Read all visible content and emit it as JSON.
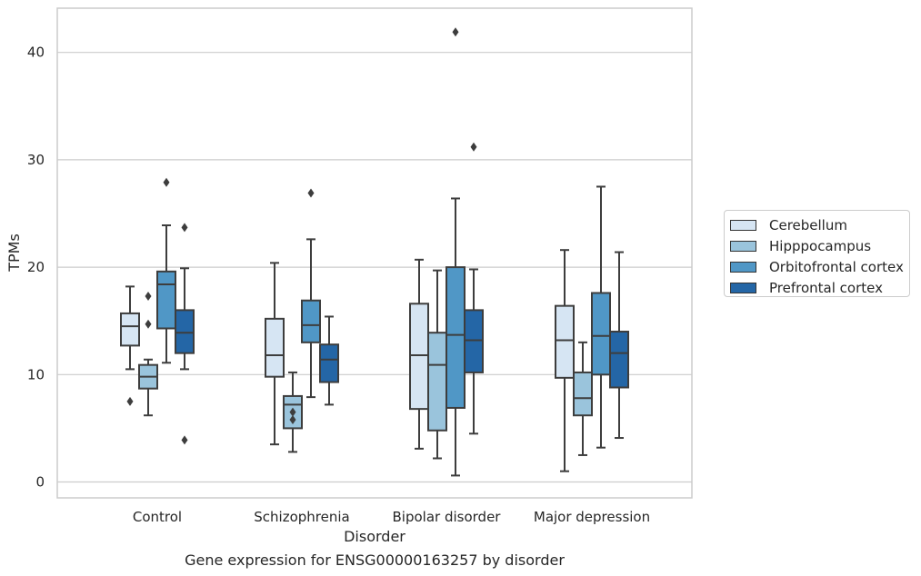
{
  "chart_data": {
    "type": "box",
    "title": "Gene expression for ENSG00000163257 by disorder",
    "xlabel": "Disorder",
    "ylabel": "TPMs",
    "ylim": [
      -1.5,
      44
    ],
    "yticks": [
      0,
      10,
      20,
      30,
      40
    ],
    "grid": "horizontal",
    "legend_position": "right",
    "categories": [
      "Control",
      "Schizophrenia",
      "Bipolar disorder",
      "Major depression"
    ],
    "series": [
      {
        "name": "Cerebellum",
        "color": "#d6e5f3",
        "boxes": [
          {
            "whislo": 10.5,
            "q1": 12.7,
            "med": 14.5,
            "q3": 15.7,
            "whishi": 18.2,
            "fliers": [
              7.5
            ]
          },
          {
            "whislo": 3.5,
            "q1": 9.8,
            "med": 11.8,
            "q3": 15.2,
            "whishi": 20.4,
            "fliers": []
          },
          {
            "whislo": 3.1,
            "q1": 6.8,
            "med": 11.8,
            "q3": 16.6,
            "whishi": 20.7,
            "fliers": []
          },
          {
            "whislo": 1.0,
            "q1": 9.7,
            "med": 13.2,
            "q3": 16.4,
            "whishi": 21.6,
            "fliers": []
          }
        ]
      },
      {
        "name": "Hipppocampus",
        "color": "#9ac4dc",
        "boxes": [
          {
            "whislo": 6.2,
            "q1": 8.7,
            "med": 9.8,
            "q3": 10.9,
            "whishi": 11.4,
            "fliers": [
              14.7,
              17.3
            ]
          },
          {
            "whislo": 2.8,
            "q1": 5.0,
            "med": 7.2,
            "q3": 8.0,
            "whishi": 10.2,
            "fliers": [
              5.8,
              6.5
            ]
          },
          {
            "whislo": 2.2,
            "q1": 4.8,
            "med": 10.9,
            "q3": 13.9,
            "whishi": 19.7,
            "fliers": []
          },
          {
            "whislo": 2.5,
            "q1": 6.2,
            "med": 7.8,
            "q3": 10.2,
            "whishi": 13.0,
            "fliers": []
          }
        ]
      },
      {
        "name": "Orbitofrontal cortex",
        "color": "#5097c6",
        "boxes": [
          {
            "whislo": 11.1,
            "q1": 14.3,
            "med": 18.4,
            "q3": 19.6,
            "whishi": 23.9,
            "fliers": [
              27.9
            ]
          },
          {
            "whislo": 7.9,
            "q1": 13.0,
            "med": 14.6,
            "q3": 16.9,
            "whishi": 22.6,
            "fliers": [
              26.9
            ]
          },
          {
            "whislo": 0.6,
            "q1": 6.9,
            "med": 13.7,
            "q3": 20.0,
            "whishi": 26.4,
            "fliers": [
              41.9
            ]
          },
          {
            "whislo": 3.2,
            "q1": 10.0,
            "med": 13.6,
            "q3": 17.6,
            "whishi": 27.5,
            "fliers": []
          }
        ]
      },
      {
        "name": "Prefrontal cortex",
        "color": "#2466a6",
        "boxes": [
          {
            "whislo": 10.5,
            "q1": 12.0,
            "med": 13.9,
            "q3": 16.0,
            "whishi": 19.9,
            "fliers": [
              3.9,
              23.7
            ]
          },
          {
            "whislo": 7.2,
            "q1": 9.3,
            "med": 11.4,
            "q3": 12.8,
            "whishi": 15.4,
            "fliers": []
          },
          {
            "whislo": 4.5,
            "q1": 10.2,
            "med": 13.2,
            "q3": 16.0,
            "whishi": 19.8,
            "fliers": [
              31.2
            ]
          },
          {
            "whislo": 4.1,
            "q1": 8.8,
            "med": 12.0,
            "q3": 14.0,
            "whishi": 21.4,
            "fliers": []
          }
        ]
      }
    ]
  }
}
